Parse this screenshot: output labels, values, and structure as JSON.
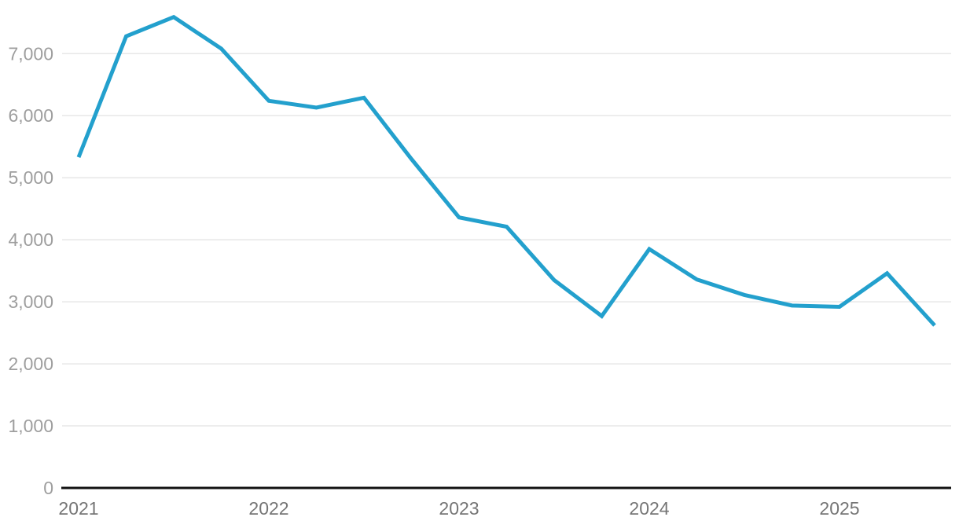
{
  "page": {
    "background_color": "#ffffff"
  },
  "chart_data": {
    "type": "line",
    "legend": "none",
    "grid": {
      "horizontal": true,
      "vertical": false,
      "color": "#e7e7e7"
    },
    "axis_line_color": "#111111",
    "x_axis": {
      "tick_labels": [
        "2021",
        "2022",
        "2023",
        "2024",
        "2025"
      ],
      "ticks_every_n_points": 4,
      "label_color": "#757575"
    },
    "y_axis": {
      "min": 0,
      "max": 7000,
      "tick_values": [
        0,
        1000,
        2000,
        3000,
        4000,
        5000,
        6000,
        7000
      ],
      "tick_labels": [
        "0",
        "1,000",
        "2,000",
        "3,000",
        "4,000",
        "5,000",
        "6,000",
        "7,000"
      ],
      "label_color": "#9e9e9e"
    },
    "series": [
      {
        "name": "series-1",
        "color": "#23a0cd",
        "stroke_width": 5,
        "x": [
          "2021 Q1",
          "2021 Q2",
          "2021 Q3",
          "2021 Q4",
          "2022 Q1",
          "2022 Q2",
          "2022 Q3",
          "2022 Q4",
          "2023 Q1",
          "2023 Q2",
          "2023 Q3",
          "2023 Q4",
          "2024 Q1",
          "2024 Q2",
          "2024 Q3",
          "2024 Q4",
          "2025 Q1",
          "2025 Q2",
          "2025 Q3"
        ],
        "values": [
          5330,
          7280,
          7590,
          7080,
          6240,
          6130,
          6290,
          5300,
          4360,
          4210,
          3350,
          2770,
          3850,
          3360,
          3110,
          2940,
          2920,
          3460,
          2620
        ]
      }
    ]
  }
}
